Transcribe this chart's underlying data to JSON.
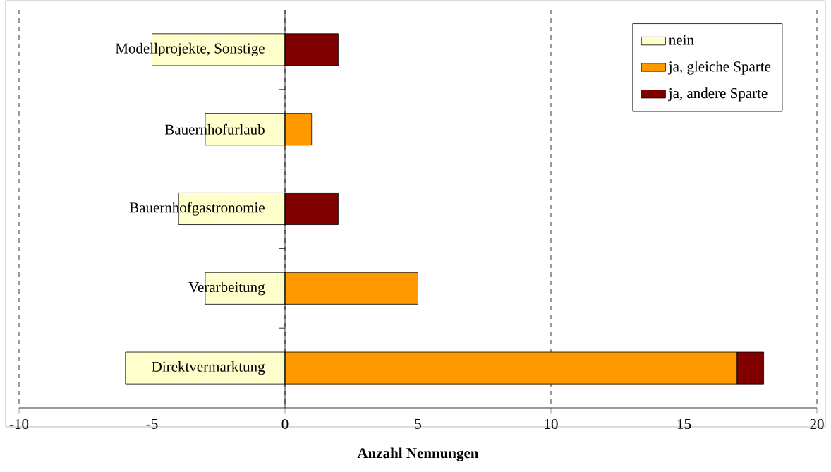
{
  "chart_data": {
    "type": "bar",
    "orientation": "horizontal",
    "stacked": true,
    "categories": [
      "Modellprojekte, Sonstige",
      "Bauernhofurlaub",
      "Bauernhofgastronomie",
      "Verarbeitung",
      "Direktvermarktung"
    ],
    "series": [
      {
        "name": "nein",
        "color": "#ffffcc",
        "values": [
          -5,
          -3,
          -4,
          -3,
          -6
        ]
      },
      {
        "name": "ja, gleiche Sparte",
        "color": "#ff9900",
        "values": [
          0,
          1,
          0,
          5,
          17
        ]
      },
      {
        "name": "ja, andere Sparte",
        "color": "#800000",
        "values": [
          2,
          0,
          2,
          0,
          1
        ]
      }
    ],
    "xlabel": "Anzahl Nennungen",
    "xlim": [
      -10,
      20
    ],
    "xticks": [
      -10,
      -5,
      0,
      5,
      10,
      15,
      20
    ],
    "grid": "x",
    "legend": "top right"
  }
}
